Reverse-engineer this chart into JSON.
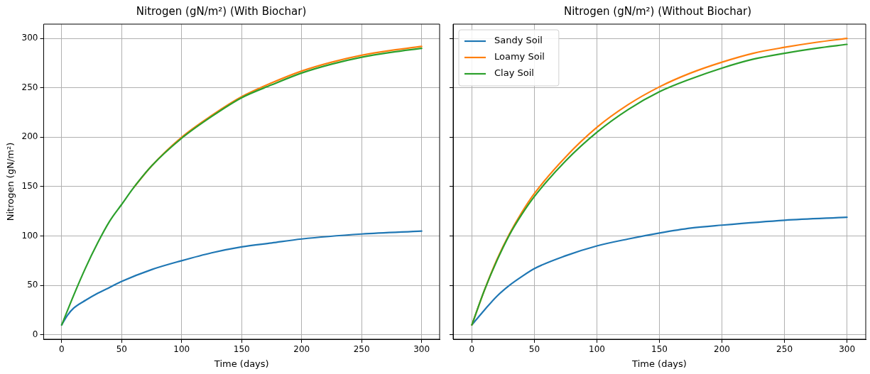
{
  "chart_data": [
    {
      "type": "line",
      "title": "Nitrogen (gN/m²) (With Biochar)",
      "xlabel": "Time (days)",
      "ylabel": "Nitrogen (gN/m²)",
      "xlim": [
        -15,
        315
      ],
      "ylim": [
        -4.5,
        314.5
      ],
      "xticks": [
        0,
        50,
        100,
        150,
        200,
        250,
        300
      ],
      "yticks": [
        0,
        50,
        100,
        150,
        200,
        250,
        300
      ],
      "grid": true,
      "legend": false,
      "series": [
        {
          "color": "#1f77b4",
          "x": [
            0,
            5,
            10,
            20,
            30,
            40,
            50,
            75,
            100,
            125,
            150,
            175,
            200,
            250,
            300
          ],
          "values": [
            10,
            20,
            27,
            35,
            42,
            48,
            54,
            66,
            75,
            83,
            89,
            93,
            97,
            102,
            105
          ]
        },
        {
          "color": "#ff7f0e",
          "x": [
            60,
            75,
            100,
            125,
            150,
            175,
            200,
            225,
            250,
            275,
            300
          ],
          "values": [
            149,
            171,
            200,
            222,
            241,
            255,
            267,
            276,
            283,
            288,
            292
          ]
        },
        {
          "color": "#2ca02c",
          "x": [
            0,
            10,
            20,
            30,
            40,
            50,
            60,
            75,
            100,
            125,
            150,
            175,
            200,
            225,
            250,
            275,
            300
          ],
          "values": [
            10,
            40,
            68,
            93,
            115,
            132,
            149,
            171,
            199,
            221,
            240,
            253,
            265,
            274,
            281,
            286,
            290
          ]
        }
      ]
    },
    {
      "type": "line",
      "title": "Nitrogen (gN/m²) (Without Biochar)",
      "xlabel": "Time (days)",
      "xlim": [
        -15,
        315
      ],
      "ylim": [
        -4.5,
        314.5
      ],
      "xticks": [
        0,
        50,
        100,
        150,
        200,
        250,
        300
      ],
      "yticks": [
        0,
        50,
        100,
        150,
        200,
        250,
        300
      ],
      "grid": true,
      "legend": "top left",
      "tick_labels": "x",
      "series": [
        {
          "name": "Sandy Soil",
          "color": "#1f77b4",
          "x": [
            0,
            10,
            20,
            30,
            40,
            50,
            75,
            100,
            125,
            150,
            175,
            200,
            250,
            300
          ],
          "values": [
            10,
            25,
            39,
            50,
            59,
            67,
            80,
            90,
            97,
            103,
            108,
            111,
            116,
            119
          ]
        },
        {
          "name": "Loamy Soil",
          "color": "#ff7f0e",
          "x": [
            0,
            10,
            20,
            30,
            40,
            50,
            75,
            100,
            125,
            150,
            175,
            200,
            225,
            250,
            275,
            300
          ],
          "values": [
            10,
            45,
            76,
            102,
            124,
            143,
            180,
            210,
            233,
            251,
            265,
            276,
            285,
            291,
            296,
            300
          ]
        },
        {
          "name": "Clay Soil",
          "color": "#2ca02c",
          "x": [
            0,
            10,
            20,
            30,
            40,
            50,
            75,
            100,
            125,
            150,
            175,
            200,
            225,
            250,
            275,
            300
          ],
          "values": [
            10,
            45,
            75,
            101,
            122,
            140,
            176,
            205,
            228,
            246,
            259,
            270,
            279,
            285,
            290,
            294
          ]
        }
      ]
    }
  ]
}
